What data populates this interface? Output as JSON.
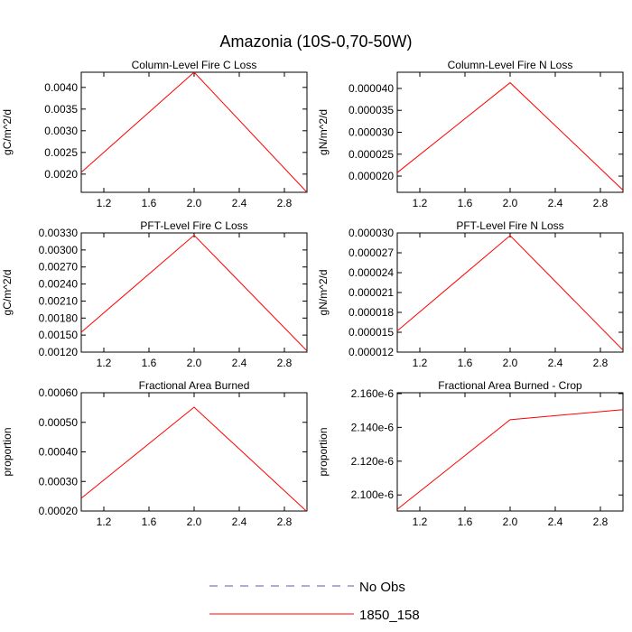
{
  "title": "Amazonia (10S-0,70-50W)",
  "colors": {
    "data_line": "#ff0000",
    "obs_line": "#5a5ab4",
    "axis": "#000000"
  },
  "legend": [
    {
      "label": "No Obs",
      "style": "dashed",
      "color": "#5a5ab4"
    },
    {
      "label": "1850_158",
      "style": "solid",
      "color": "#ff0000"
    }
  ],
  "chart_data": [
    {
      "type": "line",
      "title": "Column-Level Fire C Loss",
      "ylabel": "gC/m^2/d",
      "xlim": [
        1,
        3
      ],
      "ylim": [
        0.00158,
        0.00435
      ],
      "xticks": [
        1.2,
        1.6,
        2.0,
        2.4,
        2.8
      ],
      "xtick_labels": [
        "1.2",
        "1.6",
        "2.0",
        "2.4",
        "2.8"
      ],
      "yticks": [
        0.002,
        0.0025,
        0.003,
        0.0035,
        0.004
      ],
      "ytick_labels": [
        "0.0020",
        "0.0025",
        "0.0030",
        "0.0035",
        "0.0040"
      ],
      "series": [
        {
          "name": "1850_158",
          "x": [
            1,
            2,
            3
          ],
          "y": [
            0.00204,
            0.00435,
            0.00158
          ]
        }
      ]
    },
    {
      "type": "line",
      "title": "Column-Level Fire N Loss",
      "ylabel": "gN/m^2/d",
      "xlim": [
        1,
        3
      ],
      "ylim": [
        1.63e-05,
        4.37e-05
      ],
      "xticks": [
        1.2,
        1.6,
        2.0,
        2.4,
        2.8
      ],
      "xtick_labels": [
        "1.2",
        "1.6",
        "2.0",
        "2.4",
        "2.8"
      ],
      "yticks": [
        2e-05,
        2.5e-05,
        3e-05,
        3.5e-05,
        4e-05
      ],
      "ytick_labels": [
        "0.000020",
        "0.000025",
        "0.000030",
        "0.000035",
        "0.000040"
      ],
      "series": [
        {
          "name": "1850_158",
          "x": [
            1,
            2,
            3
          ],
          "y": [
            2.08e-05,
            4.13e-05,
            1.68e-05
          ]
        }
      ]
    },
    {
      "type": "line",
      "title": "PFT-Level Fire C Loss",
      "ylabel": "gC/m^2/d",
      "xlim": [
        1,
        3
      ],
      "ylim": [
        0.0012,
        0.0033
      ],
      "xticks": [
        1.2,
        1.6,
        2.0,
        2.4,
        2.8
      ],
      "xtick_labels": [
        "1.2",
        "1.6",
        "2.0",
        "2.4",
        "2.8"
      ],
      "yticks": [
        0.0012,
        0.0015,
        0.0018,
        0.0021,
        0.0024,
        0.0027,
        0.003,
        0.0033
      ],
      "ytick_labels": [
        "0.00120",
        "0.00150",
        "0.00180",
        "0.00210",
        "0.00240",
        "0.00270",
        "0.00300",
        "0.00330"
      ],
      "series": [
        {
          "name": "1850_158",
          "x": [
            1,
            2,
            3
          ],
          "y": [
            0.00155,
            0.00326,
            0.00122
          ]
        }
      ]
    },
    {
      "type": "line",
      "title": "PFT-Level Fire N Loss",
      "ylabel": "gN/m^2/d",
      "xlim": [
        1,
        3
      ],
      "ylim": [
        1.2e-05,
        3e-05
      ],
      "xticks": [
        1.2,
        1.6,
        2.0,
        2.4,
        2.8
      ],
      "xtick_labels": [
        "1.2",
        "1.6",
        "2.0",
        "2.4",
        "2.8"
      ],
      "yticks": [
        1.2e-05,
        1.5e-05,
        1.8e-05,
        2.1e-05,
        2.4e-05,
        2.7e-05,
        3e-05
      ],
      "ytick_labels": [
        "0.000012",
        "0.000015",
        "0.000018",
        "0.000021",
        "0.000024",
        "0.000027",
        "0.000030"
      ],
      "series": [
        {
          "name": "1850_158",
          "x": [
            1,
            2,
            3
          ],
          "y": [
            1.52e-05,
            2.96e-05,
            1.23e-05
          ]
        }
      ]
    },
    {
      "type": "line",
      "title": "Fractional Area Burned",
      "ylabel": "proportion",
      "xlim": [
        1,
        3
      ],
      "ylim": [
        0.0002,
        0.0006
      ],
      "xticks": [
        1.2,
        1.6,
        2.0,
        2.4,
        2.8
      ],
      "xtick_labels": [
        "1.2",
        "1.6",
        "2.0",
        "2.4",
        "2.8"
      ],
      "yticks": [
        0.0002,
        0.0003,
        0.0004,
        0.0005,
        0.0006
      ],
      "ytick_labels": [
        "0.00020",
        "0.00030",
        "0.00040",
        "0.00050",
        "0.00060"
      ],
      "series": [
        {
          "name": "1850_158",
          "x": [
            1,
            2,
            3
          ],
          "y": [
            0.000243,
            0.000551,
            0.000198
          ]
        }
      ]
    },
    {
      "type": "line",
      "title": "Fractional Area Burned - Crop",
      "ylabel": "proportion",
      "xlim": [
        1,
        3
      ],
      "ylim": [
        2.0905e-06,
        2.1605e-06
      ],
      "xticks": [
        1.2,
        1.6,
        2.0,
        2.4,
        2.8
      ],
      "xtick_labels": [
        "1.2",
        "1.6",
        "2.0",
        "2.4",
        "2.8"
      ],
      "yticks": [
        2.1e-06,
        2.12e-06,
        2.14e-06,
        2.16e-06
      ],
      "ytick_labels": [
        "2.100e-6",
        "2.120e-6",
        "2.140e-6",
        "2.160e-6"
      ],
      "series": [
        {
          "name": "1850_158",
          "x": [
            1,
            2,
            3
          ],
          "y": [
            2.0915e-06,
            2.1445e-06,
            2.1505e-06
          ]
        }
      ]
    }
  ]
}
